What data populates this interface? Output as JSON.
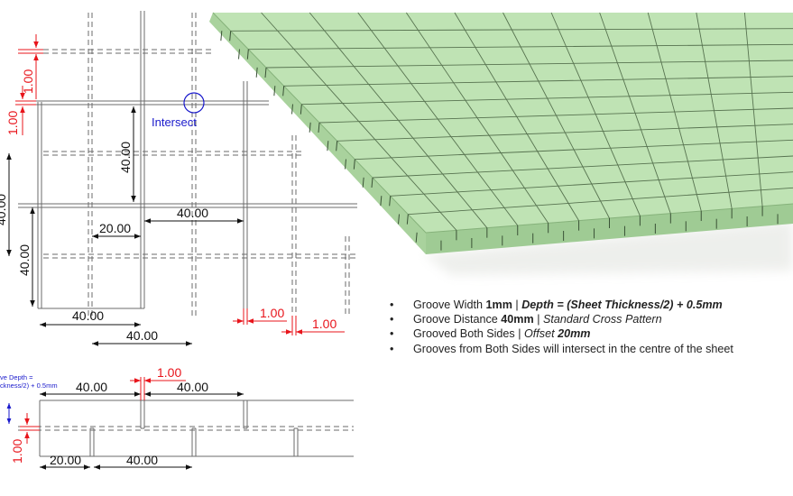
{
  "plan": {
    "intersect_label": "Intersect",
    "dims": {
      "top_red_1": "1.00",
      "top_red_2": "1.00",
      "v_40_a": "40.00",
      "v_40_b": "40.00",
      "v_40_c": "40.00",
      "h_20": "20.00",
      "h_40_upper": "40.00",
      "h_40_lower_a": "40.00",
      "h_40_lower_b": "40.00",
      "red_groove_a": "1.00",
      "red_groove_b": "1.00"
    }
  },
  "section": {
    "depth_label_line1": "ve Depth =",
    "depth_label_line2": "ckness/2) + 0.5mm",
    "dims": {
      "top_40_a": "40.00",
      "top_40_b": "40.00",
      "top_red": "1.00",
      "side_red": "1.00",
      "bottom_20": "20.00",
      "bottom_40": "40.00"
    }
  },
  "notes": [
    {
      "plain": "Groove Width ",
      "bold": "1mm",
      "sep": " | ",
      "bolditalic": "Depth = (Sheet Thickness/2) + 0.5mm"
    },
    {
      "plain": "Groove Distance ",
      "bold": "40mm",
      "sep": " | ",
      "italic": "Standard Cross Pattern"
    },
    {
      "plain": "Grooved Both Sides",
      "sep": " | ",
      "italic": "Offset ",
      "bolditalic": "20mm"
    },
    {
      "plain": "Grooves from Both Sides will intersect in the centre of the sheet"
    }
  ],
  "colors": {
    "sheet_top": "#bfe3b4",
    "sheet_side": "#98c48d",
    "groove": "#3f5a3c",
    "dim_red": "#e8141b",
    "annotation_blue": "#1a1acc"
  }
}
